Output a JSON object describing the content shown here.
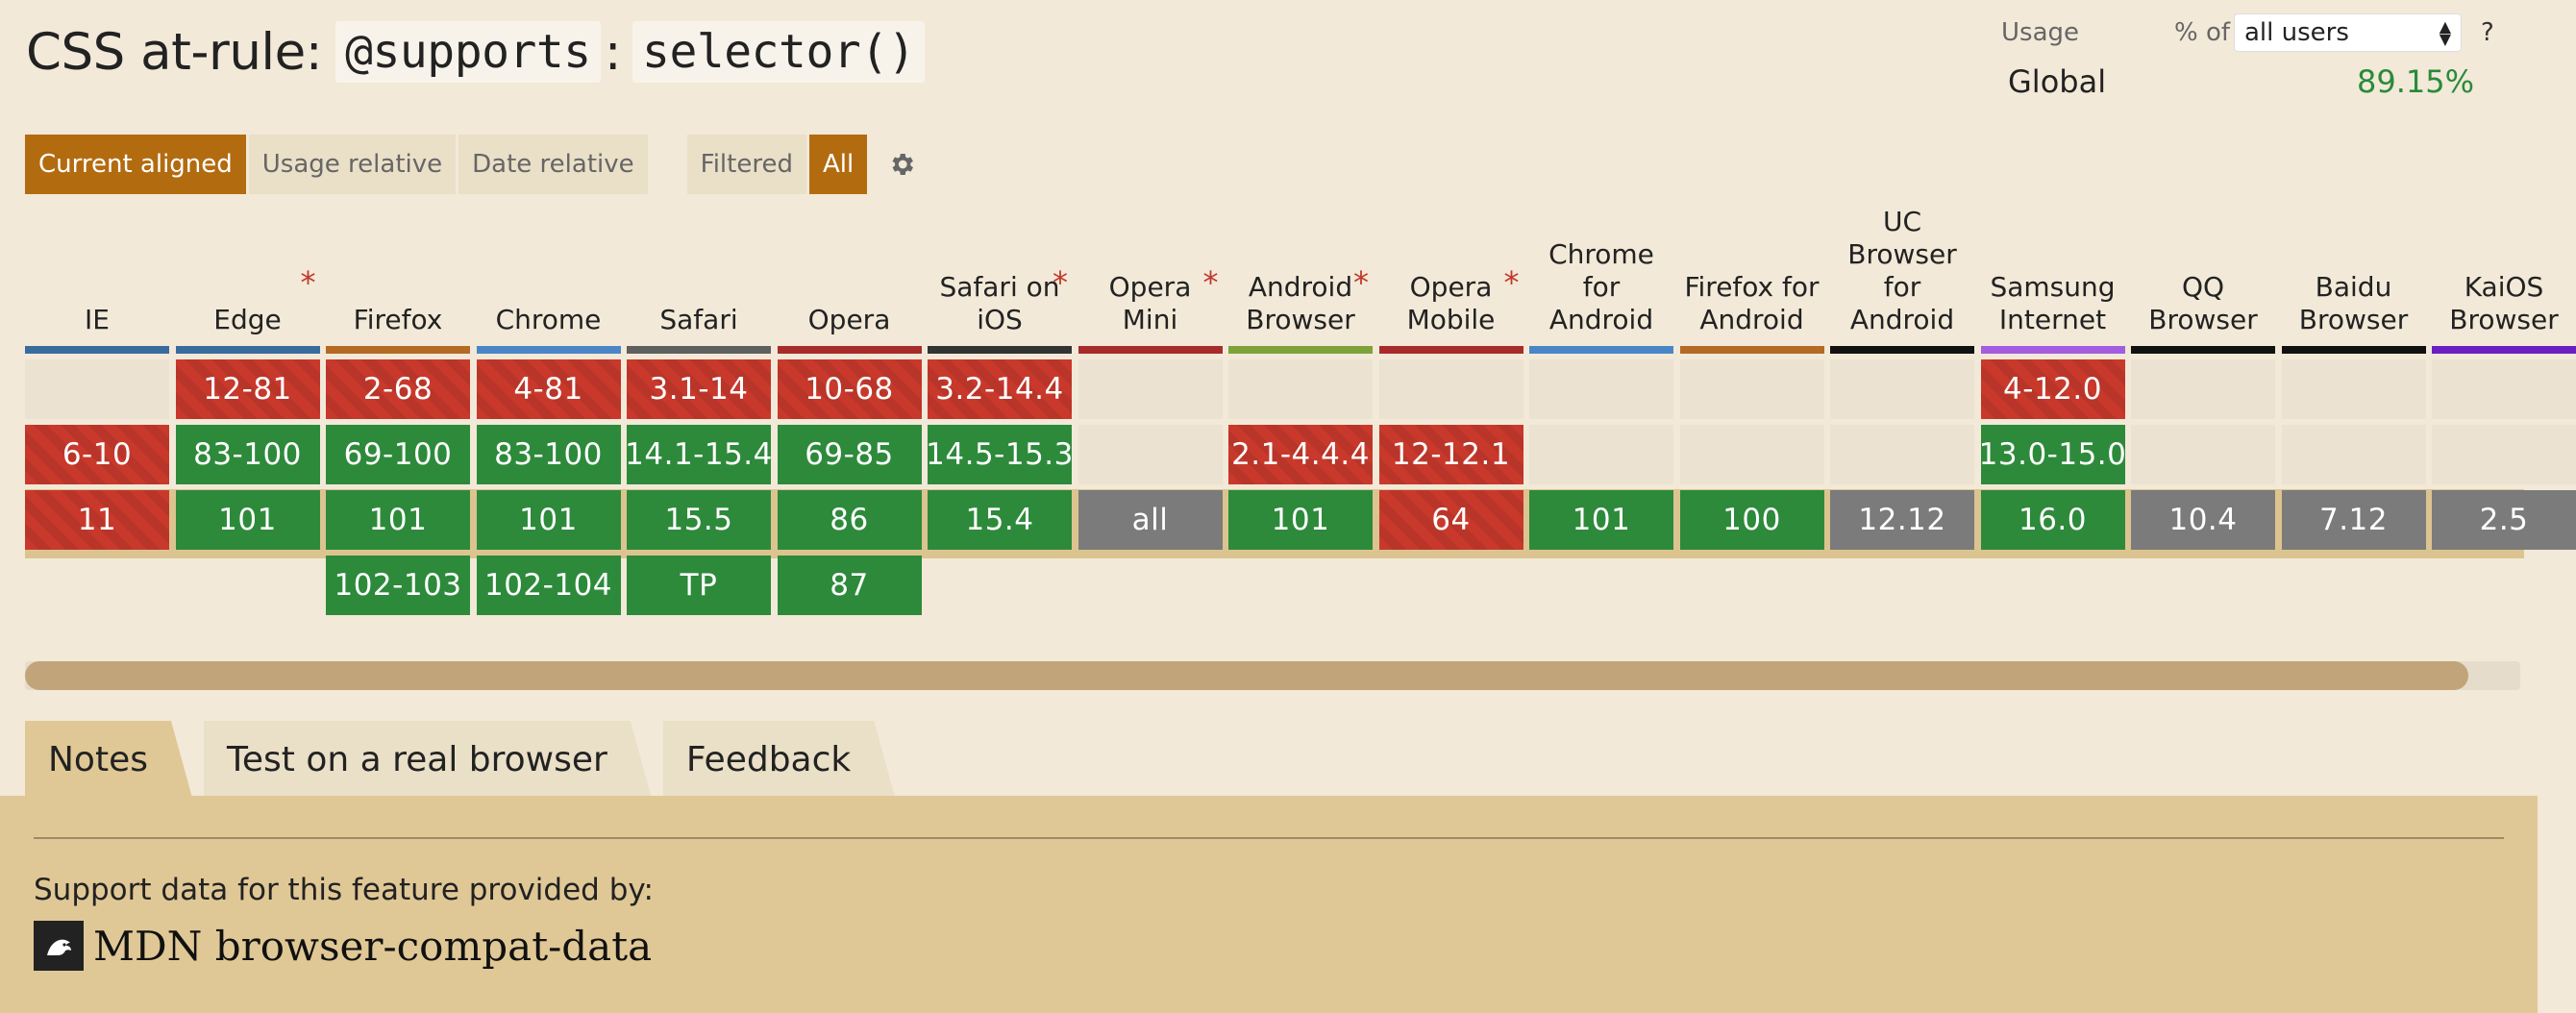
{
  "title": {
    "prefix": "CSS at-rule:",
    "code1": "@supports",
    "colon": ":",
    "code2": "selector()"
  },
  "usage": {
    "label": "Usage",
    "pct_of": "% of",
    "select_value": "all users",
    "help": "?",
    "global_label": "Global",
    "global_value": "89.15%"
  },
  "toolbar": {
    "current_aligned": "Current aligned",
    "usage_relative": "Usage relative",
    "date_relative": "Date relative",
    "filtered": "Filtered",
    "all": "All"
  },
  "browsers": [
    {
      "name": "IE",
      "star": false,
      "color": "#3a6b9e",
      "cells": [
        {
          "t": "",
          "s": "empty"
        },
        {
          "t": "6-10",
          "s": "red"
        },
        {
          "t": "11",
          "s": "red"
        },
        {
          "t": "",
          "s": "none"
        }
      ]
    },
    {
      "name": "Edge",
      "star": true,
      "color": "#3a6b9e",
      "cells": [
        {
          "t": "12-81",
          "s": "red"
        },
        {
          "t": "83-100",
          "s": "green"
        },
        {
          "t": "101",
          "s": "green"
        },
        {
          "t": "",
          "s": "none"
        }
      ]
    },
    {
      "name": "Firefox",
      "star": false,
      "color": "#b46a25",
      "cells": [
        {
          "t": "2-68",
          "s": "red"
        },
        {
          "t": "69-100",
          "s": "green"
        },
        {
          "t": "101",
          "s": "green"
        },
        {
          "t": "102-103",
          "s": "green"
        }
      ]
    },
    {
      "name": "Chrome",
      "star": false,
      "color": "#4a86c5",
      "cells": [
        {
          "t": "4-81",
          "s": "red"
        },
        {
          "t": "83-100",
          "s": "green"
        },
        {
          "t": "101",
          "s": "green"
        },
        {
          "t": "102-104",
          "s": "green"
        }
      ]
    },
    {
      "name": "Safari",
      "star": false,
      "color": "#5f5f5f",
      "cells": [
        {
          "t": "3.1-14",
          "s": "red"
        },
        {
          "t": "14.1-15.4",
          "s": "green"
        },
        {
          "t": "15.5",
          "s": "green"
        },
        {
          "t": "TP",
          "s": "green"
        }
      ]
    },
    {
      "name": "Opera",
      "star": false,
      "color": "#a82b2b",
      "cells": [
        {
          "t": "10-68",
          "s": "red"
        },
        {
          "t": "69-85",
          "s": "green"
        },
        {
          "t": "86",
          "s": "green"
        },
        {
          "t": "87",
          "s": "green"
        }
      ]
    },
    {
      "name": "Safari on iOS",
      "star": true,
      "color": "#333333",
      "cells": [
        {
          "t": "3.2-14.4",
          "s": "red"
        },
        {
          "t": "14.5-15.3",
          "s": "green"
        },
        {
          "t": "15.4",
          "s": "green"
        },
        {
          "t": "",
          "s": "none"
        }
      ]
    },
    {
      "name": "Opera Mini",
      "star": true,
      "color": "#a82b2b",
      "cells": [
        {
          "t": "",
          "s": "empty"
        },
        {
          "t": "",
          "s": "empty"
        },
        {
          "t": "all",
          "s": "gray"
        },
        {
          "t": "",
          "s": "none"
        }
      ]
    },
    {
      "name": "Android Browser",
      "star": true,
      "color": "#7fa23a",
      "cells": [
        {
          "t": "",
          "s": "empty"
        },
        {
          "t": "2.1-4.4.4",
          "s": "red"
        },
        {
          "t": "101",
          "s": "green"
        },
        {
          "t": "",
          "s": "none"
        }
      ]
    },
    {
      "name": "Opera Mobile",
      "star": true,
      "color": "#a82b2b",
      "cells": [
        {
          "t": "",
          "s": "empty"
        },
        {
          "t": "12-12.1",
          "s": "red"
        },
        {
          "t": "64",
          "s": "red"
        },
        {
          "t": "",
          "s": "none"
        }
      ]
    },
    {
      "name": "Chrome for Android",
      "star": false,
      "color": "#4a86c5",
      "cells": [
        {
          "t": "",
          "s": "empty"
        },
        {
          "t": "",
          "s": "empty"
        },
        {
          "t": "101",
          "s": "green"
        },
        {
          "t": "",
          "s": "none"
        }
      ]
    },
    {
      "name": "Firefox for Android",
      "star": false,
      "color": "#b46a25",
      "cells": [
        {
          "t": "",
          "s": "empty"
        },
        {
          "t": "",
          "s": "empty"
        },
        {
          "t": "100",
          "s": "green"
        },
        {
          "t": "",
          "s": "none"
        }
      ]
    },
    {
      "name": "UC Browser for Android",
      "star": false,
      "color": "#111111",
      "cells": [
        {
          "t": "",
          "s": "empty"
        },
        {
          "t": "",
          "s": "empty"
        },
        {
          "t": "12.12",
          "s": "gray"
        },
        {
          "t": "",
          "s": "none"
        }
      ]
    },
    {
      "name": "Samsung Internet",
      "star": false,
      "color": "#a25de0",
      "cells": [
        {
          "t": "4-12.0",
          "s": "red"
        },
        {
          "t": "13.0-15.0",
          "s": "green"
        },
        {
          "t": "16.0",
          "s": "green"
        },
        {
          "t": "",
          "s": "none"
        }
      ]
    },
    {
      "name": "QQ Browser",
      "star": false,
      "color": "#111111",
      "cells": [
        {
          "t": "",
          "s": "empty"
        },
        {
          "t": "",
          "s": "empty"
        },
        {
          "t": "10.4",
          "s": "gray"
        },
        {
          "t": "",
          "s": "none"
        }
      ]
    },
    {
      "name": "Baidu Browser",
      "star": false,
      "color": "#111111",
      "cells": [
        {
          "t": "",
          "s": "empty"
        },
        {
          "t": "",
          "s": "empty"
        },
        {
          "t": "7.12",
          "s": "gray"
        },
        {
          "t": "",
          "s": "none"
        }
      ]
    },
    {
      "name": "KaiOS Browser",
      "star": false,
      "color": "#6a1fc2",
      "cells": [
        {
          "t": "",
          "s": "empty"
        },
        {
          "t": "",
          "s": "empty"
        },
        {
          "t": "2.5",
          "s": "gray"
        },
        {
          "t": "",
          "s": "none"
        }
      ]
    }
  ],
  "tabs": {
    "notes": "Notes",
    "test": "Test on a real browser",
    "feedback": "Feedback"
  },
  "panel": {
    "support_text": "Support data for this feature provided by:",
    "mdn_text": "MDN browser-compat-data"
  }
}
